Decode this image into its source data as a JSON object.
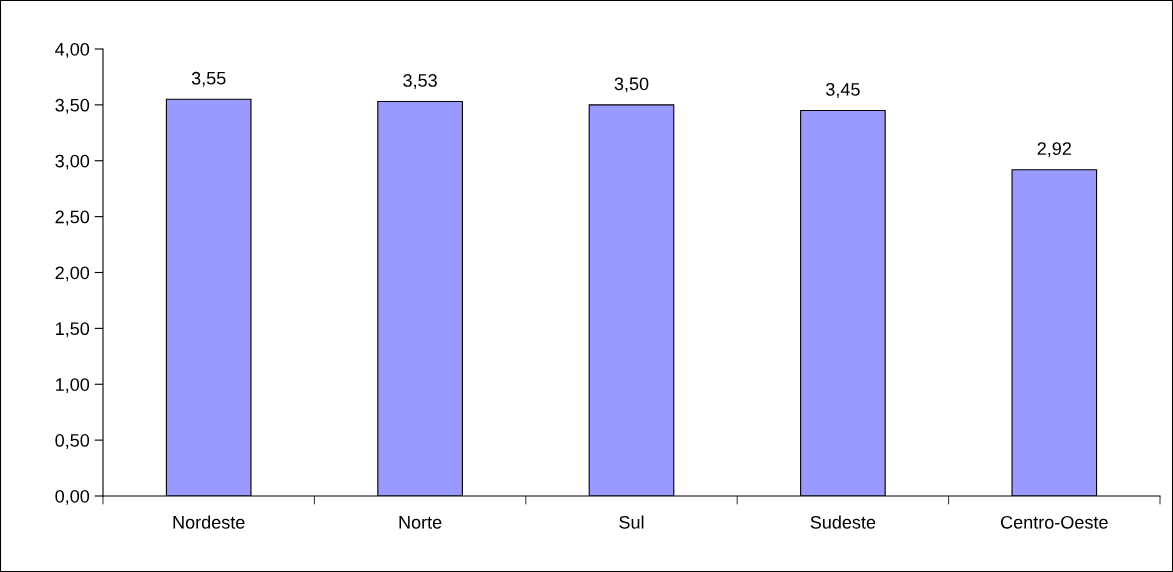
{
  "chart_data": {
    "type": "bar",
    "categories": [
      "Nordeste",
      "Norte",
      "Sul",
      "Sudeste",
      "Centro-Oeste"
    ],
    "values": [
      3.55,
      3.53,
      3.5,
      3.45,
      2.92
    ],
    "value_labels": [
      "3,55",
      "3,53",
      "3,50",
      "3,45",
      "2,92"
    ],
    "color": "#9999ff",
    "ylim": [
      0,
      4
    ],
    "yticks": [
      {
        "value": 0,
        "label": "0,00"
      },
      {
        "value": 0.5,
        "label": "0,50"
      },
      {
        "value": 1,
        "label": "1,00"
      },
      {
        "value": 1.5,
        "label": "1,50"
      },
      {
        "value": 2,
        "label": "2,00"
      },
      {
        "value": 2.5,
        "label": "2,50"
      },
      {
        "value": 3,
        "label": "3,00"
      },
      {
        "value": 3.5,
        "label": "3,50"
      },
      {
        "value": 4,
        "label": "4,00"
      }
    ],
    "grid": false
  }
}
